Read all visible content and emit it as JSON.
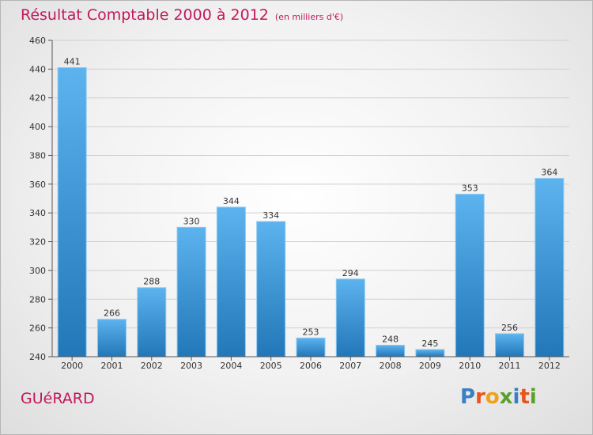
{
  "chart_data": {
    "type": "bar",
    "title": "Résultat Comptable 2000 à 2012",
    "subtitle": "(en milliers d'€)",
    "categories": [
      "2000",
      "2001",
      "2002",
      "2003",
      "2004",
      "2005",
      "2006",
      "2007",
      "2008",
      "2009",
      "2010",
      "2011",
      "2012"
    ],
    "values": [
      441,
      266,
      288,
      330,
      344,
      334,
      253,
      294,
      248,
      245,
      353,
      256,
      364
    ],
    "ylim": [
      240,
      460
    ],
    "yticks": [
      240,
      260,
      280,
      300,
      320,
      340,
      360,
      380,
      400,
      420,
      440,
      460
    ],
    "grid": true,
    "bar_color": "#3a94d6"
  },
  "footer": {
    "place_name": "GUéRARD",
    "logo_text": "Proxiti",
    "logo_letters": [
      {
        "ch": "P",
        "color": "#3a7fc4"
      },
      {
        "ch": "r",
        "color": "#e8541c"
      },
      {
        "ch": "o",
        "color": "#f2a114"
      },
      {
        "ch": "x",
        "color": "#5aa02c"
      },
      {
        "ch": "i",
        "color": "#3a7fc4"
      },
      {
        "ch": "t",
        "color": "#e8541c"
      },
      {
        "ch": "i",
        "color": "#5aa02c"
      }
    ]
  },
  "colors": {
    "accent": "#c2185b"
  }
}
